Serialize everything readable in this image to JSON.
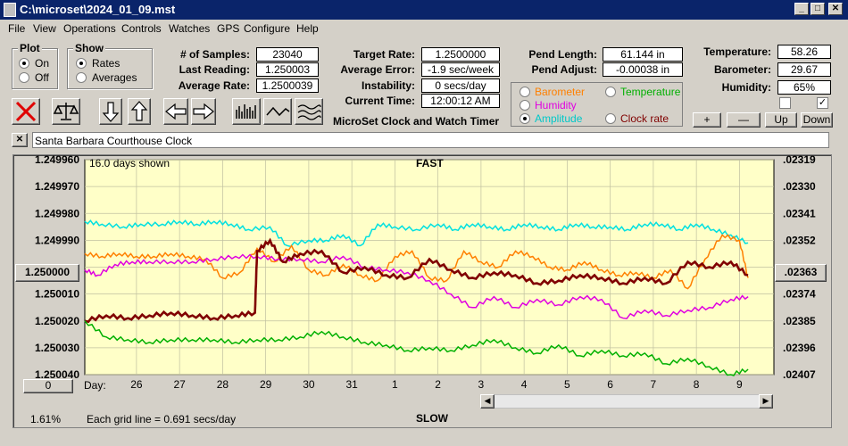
{
  "window": {
    "title": "C:\\microset\\2024_01_09.mst",
    "minimize": "_",
    "maximize": "□",
    "close": "✕"
  },
  "menu": [
    "File",
    "View",
    "Operations",
    "Controls",
    "Watches",
    "GPS",
    "Configure",
    "Help"
  ],
  "plot": {
    "title": "Plot",
    "on": "On",
    "off": "Off"
  },
  "show": {
    "title": "Show",
    "rates": "Rates",
    "averages": "Averages"
  },
  "stats": {
    "samples_label": "# of Samples:",
    "samples": "23040",
    "last_label": "Last Reading:",
    "last": "1.250003",
    "avg_label": "Average Rate:",
    "avg": "1.2500039",
    "target_label": "Target Rate:",
    "target": "1.2500000",
    "avgerr_label": "Average Error:",
    "avgerr": "-1.9 sec/week",
    "instab_label": "Instability:",
    "instab": "0 secs/day",
    "time_label": "Current Time:",
    "time": "12:00:12 AM",
    "pendlen_label": "Pend Length:",
    "pendlen": "61.144 in",
    "pendadj_label": "Pend Adjust:",
    "pendadj": "-0.00038 in",
    "temp_label": "Temperature:",
    "temp": "58.26",
    "baro_label": "Barometer:",
    "baro": "29.67",
    "hum_label": "Humidity:",
    "hum": "65%"
  },
  "app_name": "MicroSet Clock and Watch Timer",
  "sensors": {
    "barometer": "Barometer",
    "temperature": "Temperature",
    "humidity": "Humidity",
    "amplitude": "Amplitude",
    "clockrate": "Clock rate",
    "colors": {
      "barometer": "#ff8000",
      "temperature": "#00b000",
      "humidity": "#e000e0",
      "amplitude": "#00e0e0",
      "clockrate": "#800000"
    }
  },
  "scale_buttons": {
    "plus": "+",
    "minus": "—",
    "up": "Up",
    "down": "Down"
  },
  "clock_name": "Santa Barbara Courthouse Clock",
  "clear_btn": "✕",
  "chart_header": {
    "days_shown": "16.0 days shown",
    "fast": "FAST",
    "slow": "SLOW",
    "grid": "Each grid line = 0.691 secs/day",
    "percent": "1.61%",
    "zero_btn": "0",
    "day_label": "Day:"
  },
  "chart_data": {
    "type": "line",
    "left_ticks": [
      "1.249960",
      "1.249970",
      "1.249980",
      "1.249990",
      "1.250000",
      "1.250010",
      "1.250020",
      "1.250030",
      "1.250040"
    ],
    "right_ticks": [
      ".02319",
      ".02330",
      ".02341",
      ".02352",
      ".02363",
      ".02374",
      ".02385",
      ".02396",
      ".02407"
    ],
    "x_ticks": [
      "26",
      "27",
      "28",
      "29",
      "30",
      "31",
      "1",
      "2",
      "3",
      "4",
      "5",
      "6",
      "7",
      "8",
      "9"
    ],
    "ylim": [
      1.24996,
      1.25004
    ],
    "series": [
      {
        "name": "Amplitude",
        "color": "#00e0e0",
        "x": [
          0,
          0.4,
          0.9,
          1.3,
          1.8,
          2.2,
          2.6,
          3.0,
          3.4,
          3.8,
          4.3,
          4.7,
          5.2,
          5.6,
          6.0,
          6.4,
          6.8,
          7.2,
          7.7,
          8.2,
          8.6,
          9.0,
          9.4,
          9.8,
          10.2,
          10.6,
          11.0,
          11.4,
          11.8,
          12.2,
          12.6,
          13.0,
          13.4,
          13.8,
          14.2,
          14.6,
          15.0,
          15.4
        ],
        "y": [
          1.249983,
          1.249984,
          1.249985,
          1.249984,
          1.249984,
          1.249983,
          1.249984,
          1.249983,
          1.249984,
          1.249986,
          1.249985,
          1.249992,
          1.24999,
          1.24999,
          1.249988,
          1.249992,
          1.249984,
          1.249985,
          1.249986,
          1.249984,
          1.249986,
          1.249984,
          1.249985,
          1.249986,
          1.249984,
          1.249985,
          1.249986,
          1.249984,
          1.249985,
          1.249985,
          1.249986,
          1.249984,
          1.249984,
          1.249986,
          1.249984,
          1.249986,
          1.249988,
          1.249991
        ]
      },
      {
        "name": "Barometer",
        "color": "#ff8000",
        "x": [
          0,
          0.4,
          0.8,
          1.2,
          1.6,
          2.0,
          2.4,
          2.8,
          3.2,
          3.6,
          4.0,
          4.4,
          4.8,
          5.2,
          5.6,
          6.0,
          6.4,
          6.8,
          7.2,
          7.6,
          8.0,
          8.4,
          8.8,
          9.2,
          9.6,
          10.0,
          10.4,
          10.8,
          11.2,
          11.6,
          12.0,
          12.4,
          12.8,
          13.2,
          13.6,
          14.0,
          14.4,
          14.8,
          15.2,
          15.4
        ],
        "y": [
          1.249995,
          1.249996,
          1.249995,
          1.249996,
          1.249996,
          1.249995,
          1.249996,
          1.249997,
          1.250004,
          1.250002,
          1.249993,
          1.249998,
          1.249992,
          1.250001,
          1.250003,
          1.249999,
          1.250003,
          1.250005,
          1.249996,
          1.249994,
          1.250004,
          1.250005,
          1.249994,
          1.249998,
          1.25,
          1.249994,
          1.249996,
          1.25,
          1.250001,
          1.249998,
          1.250001,
          1.250003,
          1.250002,
          1.250004,
          1.250001,
          1.250008,
          1.249997,
          1.249988,
          1.24999,
          1.250004
        ]
      },
      {
        "name": "Humidity",
        "color": "#e000e0",
        "x": [
          0,
          0.3,
          0.7,
          1.1,
          1.5,
          2.0,
          2.5,
          3.0,
          3.5,
          4.0,
          4.5,
          5.0,
          5.5,
          6.0,
          6.5,
          7.0,
          7.5,
          8.0,
          8.5,
          9.0,
          9.5,
          10.0,
          10.5,
          11.0,
          11.5,
          12.0,
          12.5,
          13.0,
          13.5,
          14.0,
          14.5,
          15.0,
          15.4
        ],
        "y": [
          1.250001,
          1.250003,
          1.249999,
          1.249998,
          1.249998,
          1.249998,
          1.249998,
          1.249997,
          1.249996,
          1.249996,
          1.249997,
          1.249997,
          1.249998,
          1.249996,
          1.25,
          1.250001,
          1.250002,
          1.250005,
          1.25001,
          1.250015,
          1.250011,
          1.250015,
          1.250012,
          1.250014,
          1.250011,
          1.250012,
          1.250019,
          1.250016,
          1.250018,
          1.250016,
          1.250015,
          1.250012,
          1.250011
        ]
      },
      {
        "name": "Clock rate",
        "color": "#800000",
        "x": [
          0,
          0.5,
          1.0,
          1.5,
          2.0,
          2.5,
          3.0,
          3.5,
          3.95,
          4.0,
          4.3,
          4.6,
          5.0,
          5.5,
          6.0,
          6.5,
          7.0,
          7.5,
          8.0,
          8.5,
          9.0,
          9.5,
          10.0,
          10.5,
          11.0,
          11.5,
          12.0,
          12.5,
          13.0,
          13.5,
          14.0,
          14.5,
          15.0,
          15.4
        ],
        "y": [
          1.25002,
          1.250018,
          1.250019,
          1.250018,
          1.250017,
          1.250018,
          1.250019,
          1.250018,
          1.250017,
          1.249994,
          1.24999,
          1.249998,
          1.249995,
          1.249994,
          1.250002,
          1.25,
          1.250003,
          1.250004,
          1.249997,
          1.250001,
          1.250004,
          1.250002,
          1.250003,
          1.250006,
          1.250005,
          1.250003,
          1.250004,
          1.250006,
          1.250004,
          1.250006,
          1.249998,
          1.25,
          1.249998,
          1.250003
        ]
      },
      {
        "name": "Temperature",
        "color": "#00b000",
        "x": [
          0,
          0.5,
          1.0,
          1.5,
          2.0,
          2.5,
          3.0,
          3.5,
          4.0,
          4.5,
          5.0,
          5.5,
          6.0,
          6.5,
          7.0,
          7.5,
          8.0,
          8.5,
          9.0,
          9.5,
          10.0,
          10.5,
          11.0,
          11.5,
          12.0,
          12.5,
          13.0,
          13.5,
          14.0,
          14.5,
          15.0,
          15.4
        ],
        "y": [
          1.25002,
          1.250026,
          1.250027,
          1.250028,
          1.250027,
          1.250027,
          1.250027,
          1.250028,
          1.250027,
          1.250027,
          1.250026,
          1.250024,
          1.250026,
          1.250028,
          1.250029,
          1.250031,
          1.25003,
          1.250031,
          1.250029,
          1.250027,
          1.25003,
          1.250032,
          1.250029,
          1.250033,
          1.250031,
          1.250033,
          1.250032,
          1.250036,
          1.250034,
          1.250037,
          1.25004,
          1.250038
        ]
      }
    ]
  }
}
